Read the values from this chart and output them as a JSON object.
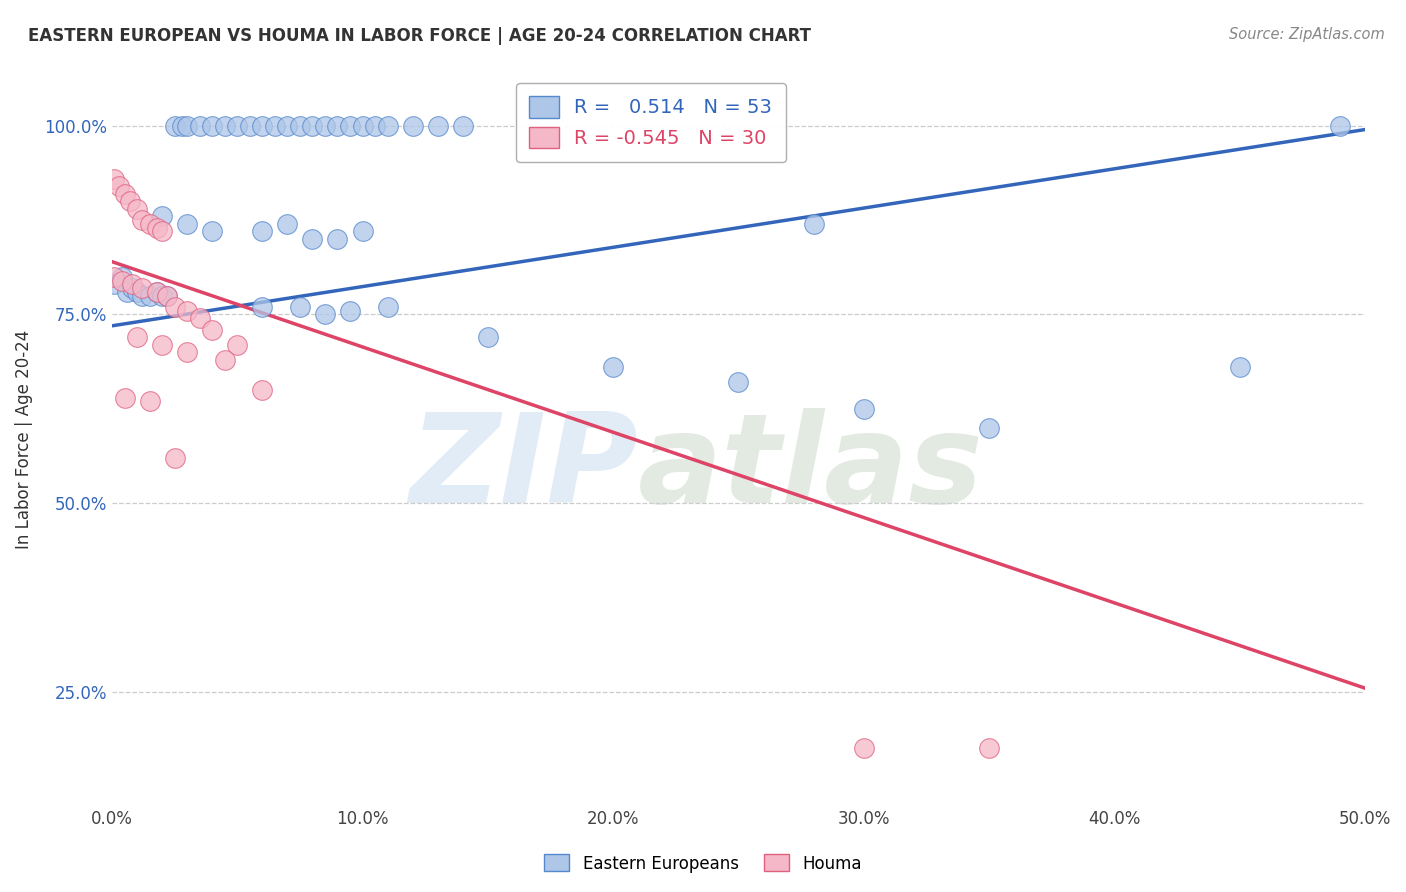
{
  "title": "EASTERN EUROPEAN VS HOUMA IN LABOR FORCE | AGE 20-24 CORRELATION CHART",
  "source": "Source: ZipAtlas.com",
  "ylabel": "In Labor Force | Age 20-24",
  "xlim": [
    0.0,
    0.5
  ],
  "ylim": [
    0.1,
    1.07
  ],
  "xticks": [
    0.0,
    0.1,
    0.2,
    0.3,
    0.4,
    0.5
  ],
  "xticklabels": [
    "0.0%",
    "10.0%",
    "20.0%",
    "30.0%",
    "40.0%",
    "50.0%"
  ],
  "yticks": [
    0.25,
    0.5,
    0.75,
    1.0
  ],
  "yticklabels": [
    "25.0%",
    "50.0%",
    "75.0%",
    "100.0%"
  ],
  "blue_R": 0.514,
  "blue_N": 53,
  "pink_R": -0.545,
  "pink_N": 30,
  "blue_fill_color": "#aec6e8",
  "pink_fill_color": "#f5b8c8",
  "blue_edge_color": "#5588cc",
  "pink_edge_color": "#e06080",
  "blue_line_color": "#3366bb",
  "pink_line_color": "#dd4466",
  "blue_scatter_x": [
    0.001,
    0.004,
    0.006,
    0.008,
    0.01,
    0.012,
    0.015,
    0.018,
    0.02,
    0.022,
    0.025,
    0.028,
    0.03,
    0.035,
    0.04,
    0.045,
    0.05,
    0.055,
    0.06,
    0.065,
    0.07,
    0.075,
    0.08,
    0.085,
    0.09,
    0.095,
    0.1,
    0.105,
    0.11,
    0.12,
    0.13,
    0.14,
    0.02,
    0.03,
    0.04,
    0.06,
    0.07,
    0.08,
    0.09,
    0.1,
    0.06,
    0.075,
    0.085,
    0.095,
    0.11,
    0.15,
    0.2,
    0.25,
    0.28,
    0.3,
    0.35,
    0.45,
    0.49
  ],
  "blue_scatter_y": [
    0.79,
    0.8,
    0.78,
    0.785,
    0.78,
    0.775,
    0.775,
    0.78,
    0.775,
    0.775,
    1.0,
    1.0,
    1.0,
    1.0,
    1.0,
    1.0,
    1.0,
    1.0,
    1.0,
    1.0,
    1.0,
    1.0,
    1.0,
    1.0,
    1.0,
    1.0,
    1.0,
    1.0,
    1.0,
    1.0,
    1.0,
    1.0,
    0.88,
    0.87,
    0.86,
    0.86,
    0.87,
    0.85,
    0.85,
    0.86,
    0.76,
    0.76,
    0.75,
    0.755,
    0.76,
    0.72,
    0.68,
    0.66,
    0.87,
    0.625,
    0.6,
    0.68,
    1.0
  ],
  "pink_scatter_x": [
    0.001,
    0.003,
    0.005,
    0.007,
    0.01,
    0.012,
    0.015,
    0.018,
    0.02,
    0.001,
    0.004,
    0.008,
    0.012,
    0.018,
    0.022,
    0.025,
    0.03,
    0.035,
    0.04,
    0.05,
    0.01,
    0.02,
    0.03,
    0.045,
    0.06,
    0.005,
    0.015,
    0.025,
    0.3,
    0.35
  ],
  "pink_scatter_y": [
    0.93,
    0.92,
    0.91,
    0.9,
    0.89,
    0.875,
    0.87,
    0.865,
    0.86,
    0.8,
    0.795,
    0.79,
    0.785,
    0.78,
    0.775,
    0.76,
    0.755,
    0.745,
    0.73,
    0.71,
    0.72,
    0.71,
    0.7,
    0.69,
    0.65,
    0.64,
    0.635,
    0.56,
    0.175,
    0.175
  ],
  "blue_trend_x": [
    0.0,
    0.5
  ],
  "blue_trend_y": [
    0.735,
    0.995
  ],
  "pink_trend_x": [
    0.0,
    0.5
  ],
  "pink_trend_y": [
    0.82,
    0.255
  ]
}
